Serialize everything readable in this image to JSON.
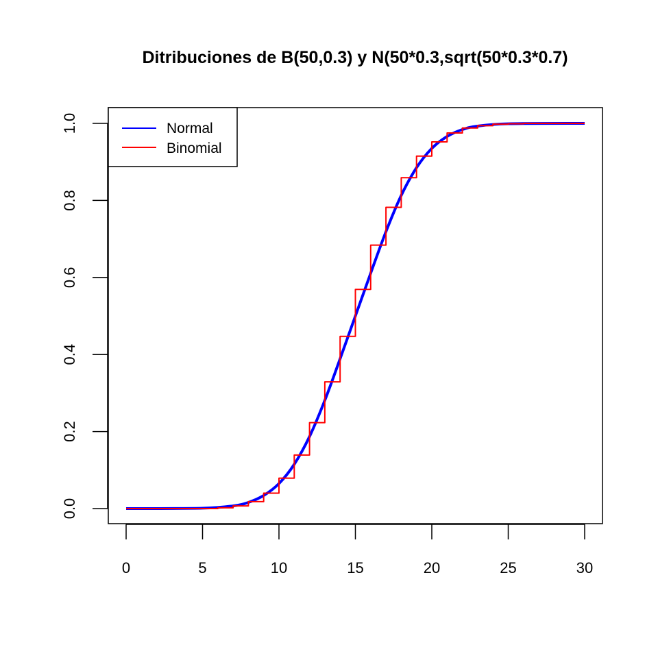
{
  "chart_data": {
    "type": "line",
    "title": "Ditribuciones de B(50,0.3) y N(50*0.3,sqrt(50*0.3*0.7)",
    "xlabel": "",
    "ylabel": "",
    "xlim": [
      0,
      30
    ],
    "ylim": [
      0,
      1
    ],
    "x_ticks": [
      "0",
      "5",
      "10",
      "15",
      "20",
      "25",
      "30"
    ],
    "y_ticks": [
      "0.0",
      "0.2",
      "0.4",
      "0.6",
      "0.8",
      "1.0"
    ],
    "grid": false,
    "legend_position": "top-left",
    "legend": [
      {
        "label": "Normal",
        "color": "#0000ff"
      },
      {
        "label": "Binomial",
        "color": "#ff0000"
      }
    ],
    "series": [
      {
        "name": "Normal",
        "color": "#0000ff",
        "kind": "smooth",
        "x": [
          0,
          5,
          7,
          8,
          9,
          10,
          11,
          12,
          13,
          14,
          15,
          16,
          17,
          18,
          19,
          20,
          21,
          22,
          23,
          25,
          30
        ],
        "y": [
          0.0,
          0.001,
          0.007,
          0.016,
          0.034,
          0.065,
          0.115,
          0.187,
          0.281,
          0.389,
          0.5,
          0.611,
          0.719,
          0.813,
          0.885,
          0.935,
          0.966,
          0.984,
          0.993,
          0.999,
          1.0
        ]
      },
      {
        "name": "Binomial",
        "color": "#ff0000",
        "kind": "step",
        "x": [
          0,
          1,
          2,
          3,
          4,
          5,
          6,
          7,
          8,
          9,
          10,
          11,
          12,
          13,
          14,
          15,
          16,
          17,
          18,
          19,
          20,
          21,
          22,
          23,
          24,
          25,
          26,
          27,
          28,
          29,
          30
        ],
        "y": [
          0.0,
          0.0,
          0.0,
          0.0,
          0.0,
          0.0,
          0.002,
          0.007,
          0.018,
          0.04,
          0.079,
          0.139,
          0.223,
          0.329,
          0.447,
          0.569,
          0.684,
          0.782,
          0.859,
          0.915,
          0.952,
          0.975,
          0.988,
          0.994,
          0.998,
          0.999,
          1.0,
          1.0,
          1.0,
          1.0,
          1.0
        ]
      }
    ]
  }
}
